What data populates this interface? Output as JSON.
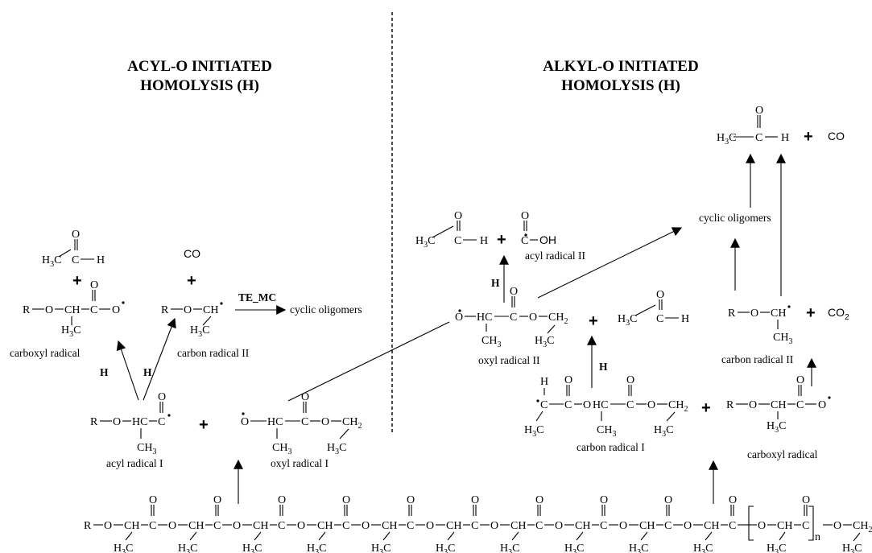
{
  "titles": {
    "left_line1": "ACYL-O INITIATED",
    "left_line2": "HOMOLYSIS (H)",
    "right_line1": "ALKYL-O INITIATED",
    "right_line2": "HOMOLYSIS (H)"
  },
  "labels": {
    "carboxyl_radical_left": "carboxyl radical",
    "carbon_radical_ii_left": "carbon radical II",
    "cyclic_oligomers_left": "cyclic oligomers",
    "te_mc": "TE_MC",
    "acyl_radical_i": "acyl radical I",
    "oxyl_radical_i": "oxyl radical I",
    "acyl_radical_ii": "acyl radical II",
    "oxyl_radical_ii": "oxyl radical II",
    "carbon_radical_i": "carbon radical I",
    "carbon_radical_ii_right": "carbon radical II",
    "carboxyl_radical_right": "carboxyl radical",
    "cyclic_oligomers_right": "cyclic oligomers",
    "h": "H"
  },
  "species": {
    "co": "CO",
    "co2": "CO",
    "co2_sub": "2",
    "oh": "OH",
    "plus": "+"
  },
  "chain": {
    "r": "R",
    "n": "n"
  }
}
